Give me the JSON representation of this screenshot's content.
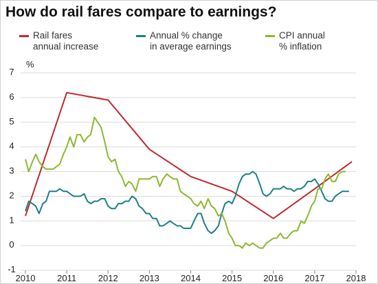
{
  "title": "How do rail fares compare to earnings?",
  "legend": [
    {
      "line1": "Rail fares",
      "line2": "annual increase",
      "color": "#c0272d"
    },
    {
      "line1": "Annual % change",
      "line2": "in average earnings",
      "color": "#1f7d86"
    },
    {
      "line1": "CPI annual",
      "line2": "% inflation",
      "color": "#8ab92d"
    }
  ],
  "chart_data": {
    "type": "line",
    "title": "How do rail fares compare to earnings?",
    "ylabel": "%",
    "xlabel": "",
    "xlim": [
      2010,
      2018
    ],
    "ylim": [
      -1,
      7
    ],
    "xticks": [
      "2010",
      "2011",
      "2012",
      "2013",
      "2014",
      "2015",
      "2016",
      "2017",
      "2018"
    ],
    "yticks": [
      "-1",
      "0",
      "1",
      "2",
      "3",
      "4",
      "5",
      "6",
      "7"
    ],
    "grid": true,
    "legend_position": "top",
    "series": [
      {
        "name": "Rail fares annual increase",
        "color": "#c0272d",
        "points": [
          [
            2010.0,
            1.2
          ],
          [
            2011.0,
            6.2
          ],
          [
            2012.0,
            5.9
          ],
          [
            2013.0,
            3.9
          ],
          [
            2014.0,
            2.8
          ],
          [
            2015.0,
            2.2
          ],
          [
            2016.0,
            1.1
          ],
          [
            2017.0,
            2.3
          ],
          [
            2017.9,
            3.4
          ]
        ]
      },
      {
        "name": "Annual % change in average earnings",
        "color": "#1f7d86",
        "points": [
          [
            2010.0,
            1.4
          ],
          [
            2010.08,
            1.8
          ],
          [
            2010.17,
            1.7
          ],
          [
            2010.25,
            1.6
          ],
          [
            2010.33,
            1.3
          ],
          [
            2010.42,
            1.7
          ],
          [
            2010.5,
            1.8
          ],
          [
            2010.58,
            2.2
          ],
          [
            2010.67,
            2.2
          ],
          [
            2010.75,
            2.2
          ],
          [
            2010.83,
            2.3
          ],
          [
            2010.92,
            2.2
          ],
          [
            2011.0,
            2.2
          ],
          [
            2011.08,
            2.1
          ],
          [
            2011.17,
            2.0
          ],
          [
            2011.25,
            2.0
          ],
          [
            2011.33,
            2.0
          ],
          [
            2011.42,
            2.1
          ],
          [
            2011.5,
            1.8
          ],
          [
            2011.58,
            1.7
          ],
          [
            2011.67,
            1.8
          ],
          [
            2011.75,
            1.8
          ],
          [
            2011.83,
            1.9
          ],
          [
            2011.92,
            1.9
          ],
          [
            2012.0,
            1.6
          ],
          [
            2012.08,
            1.5
          ],
          [
            2012.17,
            1.5
          ],
          [
            2012.25,
            1.7
          ],
          [
            2012.33,
            1.7
          ],
          [
            2012.42,
            1.8
          ],
          [
            2012.5,
            1.8
          ],
          [
            2012.58,
            2.0
          ],
          [
            2012.67,
            1.9
          ],
          [
            2012.75,
            1.6
          ],
          [
            2012.83,
            1.5
          ],
          [
            2012.92,
            1.3
          ],
          [
            2013.0,
            1.3
          ],
          [
            2013.08,
            1.1
          ],
          [
            2013.17,
            1.1
          ],
          [
            2013.25,
            0.8
          ],
          [
            2013.33,
            0.8
          ],
          [
            2013.42,
            0.9
          ],
          [
            2013.5,
            1.0
          ],
          [
            2013.58,
            0.9
          ],
          [
            2013.67,
            0.8
          ],
          [
            2013.75,
            0.8
          ],
          [
            2013.83,
            0.7
          ],
          [
            2013.92,
            0.7
          ],
          [
            2014.0,
            0.7
          ],
          [
            2014.08,
            1.0
          ],
          [
            2014.17,
            1.3
          ],
          [
            2014.25,
            1.3
          ],
          [
            2014.33,
            0.9
          ],
          [
            2014.42,
            0.6
          ],
          [
            2014.5,
            0.5
          ],
          [
            2014.58,
            0.6
          ],
          [
            2014.67,
            0.8
          ],
          [
            2014.75,
            1.3
          ],
          [
            2014.83,
            1.7
          ],
          [
            2014.92,
            1.8
          ],
          [
            2015.0,
            1.7
          ],
          [
            2015.08,
            2.0
          ],
          [
            2015.17,
            2.5
          ],
          [
            2015.25,
            2.8
          ],
          [
            2015.33,
            2.9
          ],
          [
            2015.42,
            2.9
          ],
          [
            2015.5,
            3.0
          ],
          [
            2015.58,
            2.9
          ],
          [
            2015.67,
            2.5
          ],
          [
            2015.75,
            2.1
          ],
          [
            2015.83,
            2.0
          ],
          [
            2015.92,
            2.1
          ],
          [
            2016.0,
            2.3
          ],
          [
            2016.08,
            2.3
          ],
          [
            2016.17,
            2.3
          ],
          [
            2016.25,
            2.4
          ],
          [
            2016.33,
            2.3
          ],
          [
            2016.42,
            2.3
          ],
          [
            2016.5,
            2.2
          ],
          [
            2016.58,
            2.3
          ],
          [
            2016.67,
            2.3
          ],
          [
            2016.75,
            2.4
          ],
          [
            2016.83,
            2.6
          ],
          [
            2016.92,
            2.6
          ],
          [
            2017.0,
            2.7
          ],
          [
            2017.08,
            2.5
          ],
          [
            2017.17,
            2.2
          ],
          [
            2017.25,
            1.9
          ],
          [
            2017.33,
            1.8
          ],
          [
            2017.42,
            1.8
          ],
          [
            2017.5,
            2.0
          ],
          [
            2017.58,
            2.1
          ],
          [
            2017.67,
            2.2
          ],
          [
            2017.75,
            2.2
          ],
          [
            2017.83,
            2.2
          ]
        ]
      },
      {
        "name": "CPI annual % inflation",
        "color": "#8ab92d",
        "points": [
          [
            2010.0,
            3.5
          ],
          [
            2010.08,
            3.0
          ],
          [
            2010.17,
            3.4
          ],
          [
            2010.25,
            3.7
          ],
          [
            2010.33,
            3.4
          ],
          [
            2010.42,
            3.2
          ],
          [
            2010.5,
            3.1
          ],
          [
            2010.58,
            3.1
          ],
          [
            2010.67,
            3.1
          ],
          [
            2010.75,
            3.2
          ],
          [
            2010.83,
            3.3
          ],
          [
            2010.92,
            3.7
          ],
          [
            2011.0,
            4.0
          ],
          [
            2011.08,
            4.4
          ],
          [
            2011.17,
            4.0
          ],
          [
            2011.25,
            4.5
          ],
          [
            2011.33,
            4.5
          ],
          [
            2011.42,
            4.2
          ],
          [
            2011.5,
            4.4
          ],
          [
            2011.58,
            4.5
          ],
          [
            2011.67,
            5.2
          ],
          [
            2011.75,
            5.0
          ],
          [
            2011.83,
            4.8
          ],
          [
            2011.92,
            4.2
          ],
          [
            2012.0,
            3.6
          ],
          [
            2012.08,
            3.4
          ],
          [
            2012.17,
            3.5
          ],
          [
            2012.25,
            3.0
          ],
          [
            2012.33,
            2.8
          ],
          [
            2012.42,
            2.4
          ],
          [
            2012.5,
            2.6
          ],
          [
            2012.58,
            2.5
          ],
          [
            2012.67,
            2.2
          ],
          [
            2012.75,
            2.7
          ],
          [
            2012.83,
            2.7
          ],
          [
            2012.92,
            2.7
          ],
          [
            2013.0,
            2.7
          ],
          [
            2013.08,
            2.8
          ],
          [
            2013.17,
            2.8
          ],
          [
            2013.25,
            2.4
          ],
          [
            2013.33,
            2.7
          ],
          [
            2013.42,
            2.9
          ],
          [
            2013.5,
            2.8
          ],
          [
            2013.58,
            2.7
          ],
          [
            2013.67,
            2.7
          ],
          [
            2013.75,
            2.2
          ],
          [
            2013.83,
            2.1
          ],
          [
            2013.92,
            2.0
          ],
          [
            2014.0,
            1.9
          ],
          [
            2014.08,
            1.7
          ],
          [
            2014.17,
            1.6
          ],
          [
            2014.25,
            1.8
          ],
          [
            2014.33,
            1.5
          ],
          [
            2014.42,
            1.9
          ],
          [
            2014.5,
            1.6
          ],
          [
            2014.58,
            1.5
          ],
          [
            2014.67,
            1.2
          ],
          [
            2014.75,
            1.3
          ],
          [
            2014.83,
            1.0
          ],
          [
            2014.92,
            0.5
          ],
          [
            2015.0,
            0.3
          ],
          [
            2015.08,
            0.0
          ],
          [
            2015.17,
            0.0
          ],
          [
            2015.25,
            -0.1
          ],
          [
            2015.33,
            0.1
          ],
          [
            2015.42,
            0.0
          ],
          [
            2015.5,
            0.1
          ],
          [
            2015.58,
            0.0
          ],
          [
            2015.67,
            -0.1
          ],
          [
            2015.75,
            -0.1
          ],
          [
            2015.83,
            0.1
          ],
          [
            2015.92,
            0.2
          ],
          [
            2016.0,
            0.3
          ],
          [
            2016.08,
            0.3
          ],
          [
            2016.17,
            0.5
          ],
          [
            2016.25,
            0.3
          ],
          [
            2016.33,
            0.3
          ],
          [
            2016.42,
            0.5
          ],
          [
            2016.5,
            0.6
          ],
          [
            2016.58,
            0.6
          ],
          [
            2016.67,
            1.0
          ],
          [
            2016.75,
            0.9
          ],
          [
            2016.83,
            1.2
          ],
          [
            2016.92,
            1.6
          ],
          [
            2017.0,
            1.8
          ],
          [
            2017.08,
            2.3
          ],
          [
            2017.17,
            2.3
          ],
          [
            2017.25,
            2.7
          ],
          [
            2017.33,
            2.9
          ],
          [
            2017.42,
            2.6
          ],
          [
            2017.5,
            2.6
          ],
          [
            2017.58,
            2.9
          ],
          [
            2017.67,
            3.0
          ],
          [
            2017.75,
            3.0
          ]
        ]
      }
    ]
  }
}
